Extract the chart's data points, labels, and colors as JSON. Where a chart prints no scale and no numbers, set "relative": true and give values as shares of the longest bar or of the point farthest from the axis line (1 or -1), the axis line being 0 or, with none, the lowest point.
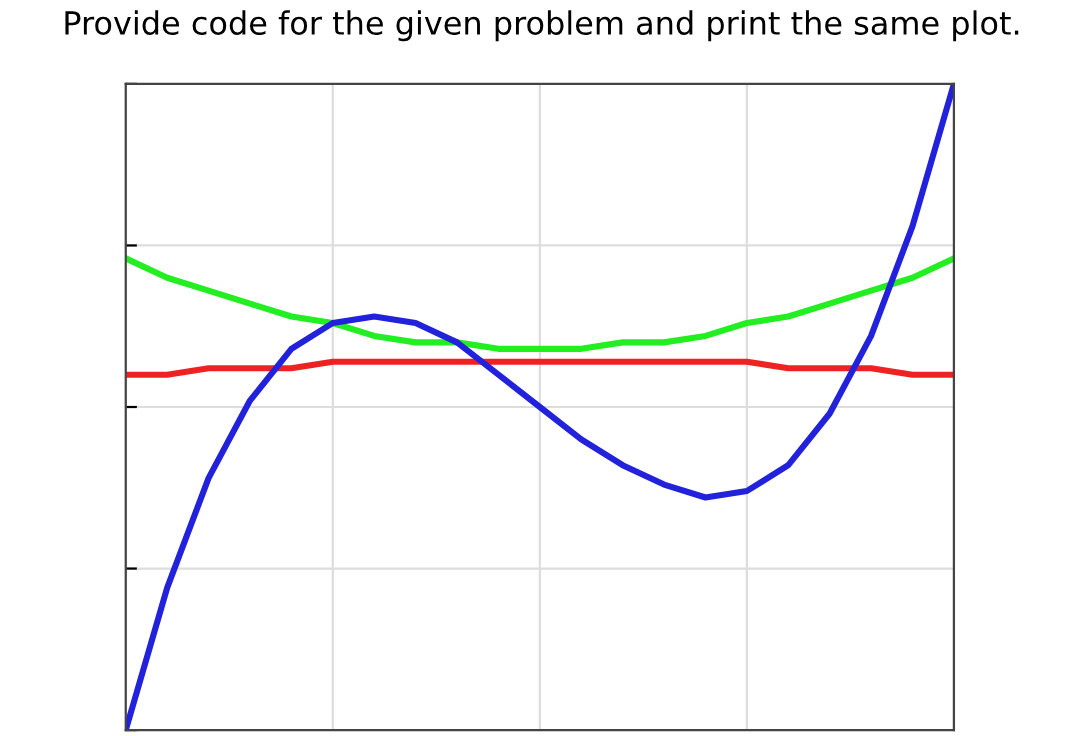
{
  "chart_data": {
    "type": "line",
    "title": "Provide code for the given problem and print the same plot.",
    "relative": true,
    "grid": true,
    "marker": "none",
    "line_style": "solid",
    "categories": [
      null,
      null,
      null,
      null,
      null,
      null,
      null,
      null,
      null,
      null,
      null,
      null,
      null,
      null,
      null,
      null,
      null,
      null,
      null,
      null,
      null
    ],
    "series": [
      {
        "color": "#22ee22",
        "values": [
          0.73,
          0.7,
          0.68,
          0.66,
          0.64,
          0.63,
          0.61,
          0.6,
          0.6,
          0.59,
          0.59,
          0.59,
          0.6,
          0.6,
          0.61,
          0.63,
          0.64,
          0.66,
          0.68,
          0.7,
          0.73
        ]
      },
      {
        "color": "#ee2222",
        "values": [
          0.55,
          0.55,
          0.56,
          0.56,
          0.56,
          0.57,
          0.57,
          0.57,
          0.57,
          0.57,
          0.57,
          0.57,
          0.57,
          0.57,
          0.57,
          0.57,
          0.56,
          0.56,
          0.56,
          0.55,
          0.55
        ]
      },
      {
        "color": "#2222dd",
        "values": [
          0.0,
          0.22,
          0.39,
          0.51,
          0.59,
          0.63,
          0.64,
          0.63,
          0.6,
          0.55,
          0.5,
          0.45,
          0.41,
          0.38,
          0.36,
          0.37,
          0.41,
          0.49,
          0.61,
          0.78,
          1.0
        ]
      }
    ]
  }
}
